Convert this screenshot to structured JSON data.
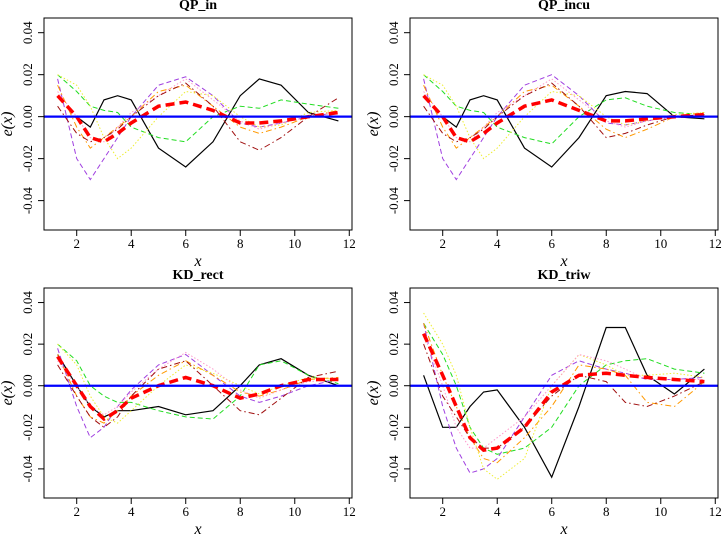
{
  "chart_data": [
    {
      "type": "line",
      "title": "QP_in",
      "x_label": "x",
      "y_label": "e(x)",
      "x": [
        1.3,
        2,
        2.5,
        3,
        3.5,
        4,
        5,
        6,
        7,
        8,
        8.7,
        9.5,
        10.5,
        11.6
      ],
      "xlim": [
        0.8,
        12.1
      ],
      "xticks": [
        2,
        4,
        6,
        8,
        10,
        12
      ],
      "ylim": [
        -0.054,
        0.047
      ],
      "yticks": [
        -0.04,
        -0.02,
        {
          "value": 0,
          "label": "0.00"
        },
        0.02,
        0.04
      ],
      "reference_line": {
        "value": 0,
        "color": "#0000ff"
      },
      "series": [
        {
          "color": "#000000",
          "dash": "solid",
          "values": [
            0,
            0,
            -0.005,
            0.008,
            0.01,
            0.008,
            -0.015,
            -0.024,
            -0.012,
            0.01,
            0.018,
            0.015,
            0.002,
            -0.002
          ]
        },
        {
          "color": "#22dd22",
          "dash": "dashed",
          "values": [
            0.02,
            0.012,
            0.005,
            0.003,
            0.002,
            -0.005,
            -0.01,
            -0.012,
            0,
            0.005,
            0.004,
            0.008,
            0.006,
            0.004
          ]
        },
        {
          "color": "#a040e0",
          "dash": "dashed",
          "values": [
            0.018,
            -0.02,
            -0.03,
            -0.02,
            -0.01,
            0,
            0.015,
            0.019,
            0.01,
            -0.003,
            -0.005,
            -0.003,
            0,
            0.002
          ]
        },
        {
          "color": "#ff9900",
          "dash": "dashdot",
          "values": [
            0.015,
            -0.005,
            -0.015,
            -0.01,
            -0.005,
            0,
            0.012,
            0.015,
            0.005,
            -0.005,
            -0.008,
            -0.005,
            0,
            0.003
          ]
        },
        {
          "color": "#eeee33",
          "dash": "dotted",
          "values": [
            0.02,
            0.015,
            0.005,
            -0.01,
            -0.02,
            -0.015,
            0,
            0.012,
            0.01,
            0,
            -0.005,
            -0.004,
            0.002,
            0.003
          ]
        },
        {
          "color": "#ff99cc",
          "dash": "dotted",
          "values": [
            0.012,
            0,
            -0.01,
            -0.012,
            -0.005,
            0.002,
            0.01,
            0.018,
            0.008,
            -0.002,
            -0.006,
            -0.003,
            0,
            0.002
          ]
        },
        {
          "color": "#a01010",
          "dash": "dashdot",
          "values": [
            0.005,
            -0.008,
            -0.012,
            -0.01,
            -0.006,
            0,
            0.01,
            0.016,
            0.005,
            -0.012,
            -0.016,
            -0.01,
            0,
            0.009
          ]
        },
        {
          "color": "#ff0000",
          "dash": "mean",
          "values": [
            0.01,
            0,
            -0.01,
            -0.012,
            -0.008,
            -0.003,
            0.005,
            0.007,
            0.003,
            -0.003,
            -0.003,
            -0.002,
            0,
            0.002
          ]
        }
      ]
    },
    {
      "type": "line",
      "title": "QP_incu",
      "x_label": "x",
      "y_label": "e(x)",
      "x": [
        1.3,
        2,
        2.5,
        3,
        3.5,
        4,
        5,
        6,
        7,
        8,
        8.7,
        9.5,
        10.5,
        11.6
      ],
      "xlim": [
        0.8,
        12.1
      ],
      "xticks": [
        2,
        4,
        6,
        8,
        10,
        12
      ],
      "ylim": [
        -0.054,
        0.047
      ],
      "yticks": [
        -0.04,
        -0.02,
        {
          "value": 0,
          "label": "0.00"
        },
        0.02,
        0.04
      ],
      "reference_line": {
        "value": 0,
        "color": "#0000ff"
      },
      "series": [
        {
          "color": "#000000",
          "dash": "solid",
          "values": [
            0,
            0,
            -0.005,
            0.008,
            0.01,
            0.008,
            -0.015,
            -0.024,
            -0.01,
            0.01,
            0.012,
            0.011,
            0,
            -0.001
          ]
        },
        {
          "color": "#22dd22",
          "dash": "dashed",
          "values": [
            0.02,
            0.012,
            0.005,
            0.003,
            0.002,
            -0.005,
            -0.01,
            -0.013,
            0,
            0.008,
            0.009,
            0.005,
            0.002,
            0.001
          ]
        },
        {
          "color": "#a040e0",
          "dash": "dashed",
          "values": [
            0.018,
            -0.02,
            -0.03,
            -0.02,
            -0.01,
            0,
            0.015,
            0.02,
            0.01,
            -0.003,
            -0.004,
            -0.002,
            0,
            0.001
          ]
        },
        {
          "color": "#ff9900",
          "dash": "dashdot",
          "values": [
            0.015,
            -0.005,
            -0.015,
            -0.01,
            -0.005,
            0,
            0.012,
            0.015,
            0.005,
            -0.006,
            -0.01,
            -0.006,
            0,
            0.002
          ]
        },
        {
          "color": "#eeee33",
          "dash": "dotted",
          "values": [
            0.02,
            0.015,
            0.005,
            -0.01,
            -0.02,
            -0.015,
            0,
            0.012,
            0.01,
            0,
            -0.004,
            -0.002,
            0.001,
            0.002
          ]
        },
        {
          "color": "#ff99cc",
          "dash": "dotted",
          "values": [
            0.012,
            0,
            -0.01,
            -0.012,
            -0.005,
            0.002,
            0.01,
            0.018,
            0.008,
            -0.002,
            -0.005,
            -0.002,
            0,
            0.001
          ]
        },
        {
          "color": "#a01010",
          "dash": "dashdot",
          "values": [
            0.005,
            -0.008,
            -0.012,
            -0.01,
            -0.006,
            0,
            0.01,
            0.016,
            0.005,
            -0.01,
            -0.008,
            -0.004,
            0,
            0.001
          ]
        },
        {
          "color": "#ff0000",
          "dash": "mean",
          "values": [
            0.01,
            0,
            -0.01,
            -0.012,
            -0.008,
            -0.003,
            0.005,
            0.008,
            0.003,
            -0.002,
            -0.002,
            -0.001,
            0,
            0.001
          ]
        }
      ]
    },
    {
      "type": "line",
      "title": "KD_rect",
      "x_label": "x",
      "y_label": "e(x)",
      "x": [
        1.3,
        2,
        2.5,
        3,
        3.5,
        4,
        5,
        6,
        7,
        8,
        8.7,
        9.5,
        10.5,
        11.6
      ],
      "xlim": [
        0.8,
        12.1
      ],
      "xticks": [
        2,
        4,
        6,
        8,
        10,
        12
      ],
      "ylim": [
        -0.054,
        0.047
      ],
      "yticks": [
        -0.04,
        -0.02,
        {
          "value": 0,
          "label": "0.00"
        },
        0.02,
        0.04
      ],
      "reference_line": {
        "value": 0,
        "color": "#0000ff"
      },
      "series": [
        {
          "color": "#000000",
          "dash": "solid",
          "values": [
            0.015,
            0,
            -0.01,
            -0.015,
            -0.012,
            -0.012,
            -0.01,
            -0.014,
            -0.012,
            0,
            0.01,
            0.013,
            0.005,
            0
          ]
        },
        {
          "color": "#22dd22",
          "dash": "dashed",
          "values": [
            0.02,
            0.012,
            0,
            -0.005,
            -0.008,
            -0.008,
            -0.012,
            -0.015,
            -0.016,
            -0.005,
            0.01,
            0.012,
            0.005,
            0.001
          ]
        },
        {
          "color": "#a040e0",
          "dash": "dashed",
          "values": [
            0.018,
            -0.01,
            -0.025,
            -0.02,
            -0.01,
            -0.002,
            0.01,
            0.015,
            0.005,
            -0.005,
            -0.008,
            -0.005,
            0,
            0.003
          ]
        },
        {
          "color": "#ff9900",
          "dash": "dashdot",
          "values": [
            0.015,
            -0.005,
            -0.015,
            -0.018,
            -0.012,
            -0.005,
            0.005,
            0.012,
            0.005,
            -0.003,
            -0.005,
            -0.002,
            0.003,
            0.004
          ]
        },
        {
          "color": "#eeee33",
          "dash": "dotted",
          "values": [
            0.02,
            0.01,
            -0.005,
            -0.015,
            -0.018,
            -0.012,
            0,
            0.01,
            0.006,
            0,
            -0.004,
            0,
            0.004,
            0.003
          ]
        },
        {
          "color": "#ff99cc",
          "dash": "dotted",
          "values": [
            0.012,
            0,
            -0.01,
            -0.014,
            -0.01,
            -0.003,
            0.008,
            0.016,
            0.008,
            -0.002,
            -0.006,
            -0.002,
            0.002,
            0.003
          ]
        },
        {
          "color": "#a01010",
          "dash": "dashdot",
          "values": [
            0.01,
            -0.005,
            -0.015,
            -0.02,
            -0.015,
            -0.005,
            0.008,
            0.012,
            0,
            -0.012,
            -0.014,
            -0.006,
            0.004,
            0.007
          ]
        },
        {
          "color": "#ff0000",
          "dash": "mean",
          "values": [
            0.014,
            0,
            -0.01,
            -0.016,
            -0.012,
            -0.006,
            0,
            0.004,
            0,
            -0.006,
            -0.004,
            0,
            0.003,
            0.003
          ]
        }
      ]
    },
    {
      "type": "line",
      "title": "KD_triw",
      "x_label": "x",
      "y_label": "e(x)",
      "x": [
        1.3,
        2,
        2.5,
        3,
        3.5,
        4,
        5,
        6,
        7,
        8,
        8.7,
        9.5,
        10.5,
        11.6
      ],
      "xlim": [
        0.8,
        12.1
      ],
      "xticks": [
        2,
        4,
        6,
        8,
        10,
        12
      ],
      "ylim": [
        -0.054,
        0.047
      ],
      "yticks": [
        -0.04,
        -0.02,
        {
          "value": 0,
          "label": "0.00"
        },
        0.02,
        0.04
      ],
      "reference_line": {
        "value": 0,
        "color": "#0000ff"
      },
      "series": [
        {
          "color": "#000000",
          "dash": "solid",
          "values": [
            0.005,
            -0.02,
            -0.02,
            -0.01,
            -0.003,
            -0.002,
            -0.02,
            -0.044,
            -0.01,
            0.028,
            0.028,
            0.005,
            -0.004,
            0.008
          ]
        },
        {
          "color": "#22dd22",
          "dash": "dashed",
          "values": [
            0.03,
            0.015,
            0,
            -0.02,
            -0.03,
            -0.033,
            -0.03,
            -0.02,
            0,
            0.01,
            0.012,
            0.013,
            0.008,
            0.006
          ]
        },
        {
          "color": "#a040e0",
          "dash": "dashed",
          "values": [
            0.03,
            -0.01,
            -0.03,
            -0.042,
            -0.04,
            -0.035,
            -0.015,
            0.005,
            0.012,
            0.008,
            0.006,
            0.003,
            0.003,
            0.004
          ]
        },
        {
          "color": "#ff9900",
          "dash": "dashdot",
          "values": [
            0.03,
            0.005,
            -0.01,
            -0.025,
            -0.035,
            -0.037,
            -0.025,
            -0.01,
            0.01,
            0.008,
            0.005,
            -0.008,
            -0.01,
            0.002
          ]
        },
        {
          "color": "#eeee33",
          "dash": "dotted",
          "values": [
            0.035,
            0.02,
            0.005,
            -0.02,
            -0.04,
            -0.045,
            -0.035,
            0,
            0.015,
            0.01,
            0.005,
            0.005,
            0.006,
            0.004
          ]
        },
        {
          "color": "#ff99cc",
          "dash": "dotted",
          "values": [
            0.025,
            0,
            -0.02,
            -0.03,
            -0.03,
            -0.025,
            -0.015,
            0,
            0.015,
            0.012,
            0.008,
            0.003,
            0.003,
            0.003
          ]
        },
        {
          "color": "#a01010",
          "dash": "dashdot",
          "values": [
            0.02,
            -0.005,
            -0.015,
            -0.025,
            -0.03,
            -0.03,
            -0.02,
            -0.005,
            0.005,
            0.002,
            -0.008,
            -0.01,
            -0.005,
            0.002
          ]
        },
        {
          "color": "#ff0000",
          "dash": "mean",
          "values": [
            0.025,
            0.005,
            -0.01,
            -0.025,
            -0.031,
            -0.03,
            -0.02,
            -0.003,
            0.005,
            0.006,
            0.005,
            0.004,
            0.003,
            0.002
          ]
        }
      ]
    }
  ]
}
